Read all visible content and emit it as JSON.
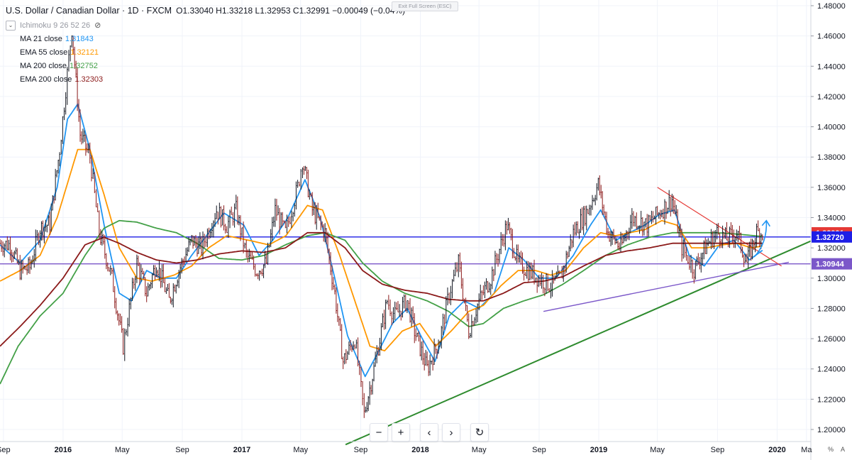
{
  "header": {
    "symbol": "U.S. Dollar / Canadian Dollar · 1D · FXCM",
    "ohlc": "O1.33040  H1.33218  L1.32953  C1.32991  −0.00049 (−0.04%)",
    "ichimoku_label": "Ichimoku 9 26 52 26",
    "exit_fullscreen": "Exit Full Screen (ESC)"
  },
  "indicators": [
    {
      "label": "MA 21 close",
      "value": "1.31843",
      "color": "#2196f3"
    },
    {
      "label": "EMA 55 close",
      "value": "1.32121",
      "color": "#ff9800"
    },
    {
      "label": "MA 200 close",
      "value": "1.32752",
      "color": "#43a047"
    },
    {
      "label": "EMA 200 close",
      "value": "1.32303",
      "color": "#8b1a1a"
    }
  ],
  "price_labels": [
    {
      "value": "1.32991",
      "bg": "#e53935"
    },
    {
      "value": "1.32720",
      "bg": "#1e1ee6"
    },
    {
      "value": "1.30944",
      "bg": "#7b57c9"
    }
  ],
  "nav": {
    "zoom_out": "−",
    "zoom_in": "+",
    "scroll_left": "‹",
    "scroll_right": "›",
    "reset": "↻"
  },
  "axis_buttons": {
    "percent": "%",
    "auto": "A"
  },
  "chart_data": {
    "type": "line",
    "title": "U.S. Dollar / Canadian Dollar · 1D · FXCM",
    "y_range": [
      1.19,
      1.485
    ],
    "y_ticks": [
      1.2,
      1.22,
      1.24,
      1.26,
      1.28,
      1.3,
      1.32,
      1.34,
      1.36,
      1.38,
      1.4,
      1.42,
      1.44,
      1.46,
      1.48
    ],
    "x_range": [
      "2015-08-25",
      "2020-03-10"
    ],
    "x_ticks": [
      {
        "label": "Sep",
        "date": "2015-09-01"
      },
      {
        "label": "2016",
        "date": "2016-01-01"
      },
      {
        "label": "May",
        "date": "2016-05-01"
      },
      {
        "label": "Sep",
        "date": "2016-09-01"
      },
      {
        "label": "2017",
        "date": "2017-01-01"
      },
      {
        "label": "May",
        "date": "2017-05-01"
      },
      {
        "label": "Sep",
        "date": "2017-09-01"
      },
      {
        "label": "2018",
        "date": "2018-01-01"
      },
      {
        "label": "May",
        "date": "2018-05-01"
      },
      {
        "label": "Sep",
        "date": "2018-09-01"
      },
      {
        "label": "2019",
        "date": "2019-01-01"
      },
      {
        "label": "May",
        "date": "2019-05-01"
      },
      {
        "label": "Sep",
        "date": "2019-09-01"
      },
      {
        "label": "2020",
        "date": "2020-01-01"
      },
      {
        "label": "Ma",
        "date": "2020-03-01"
      }
    ],
    "price_close": [
      [
        "2015-08-25",
        1.323
      ],
      [
        "2015-09-15",
        1.322
      ],
      [
        "2015-10-05",
        1.305
      ],
      [
        "2015-10-25",
        1.307
      ],
      [
        "2015-11-15",
        1.333
      ],
      [
        "2015-12-05",
        1.336
      ],
      [
        "2015-12-25",
        1.385
      ],
      [
        "2016-01-19",
        1.465
      ],
      [
        "2016-02-05",
        1.395
      ],
      [
        "2016-02-25",
        1.38
      ],
      [
        "2016-03-15",
        1.33
      ],
      [
        "2016-04-10",
        1.3
      ],
      [
        "2016-05-03",
        1.255
      ],
      [
        "2016-05-31",
        1.31
      ],
      [
        "2016-06-20",
        1.29
      ],
      [
        "2016-07-10",
        1.31
      ],
      [
        "2016-08-05",
        1.285
      ],
      [
        "2016-08-25",
        1.305
      ],
      [
        "2016-09-20",
        1.325
      ],
      [
        "2016-10-10",
        1.32
      ],
      [
        "2016-11-10",
        1.345
      ],
      [
        "2016-12-01",
        1.335
      ],
      [
        "2016-12-20",
        1.345
      ],
      [
        "2017-01-10",
        1.315
      ],
      [
        "2017-01-31",
        1.305
      ],
      [
        "2017-02-20",
        1.31
      ],
      [
        "2017-03-10",
        1.345
      ],
      [
        "2017-03-31",
        1.33
      ],
      [
        "2017-04-25",
        1.36
      ],
      [
        "2017-05-05",
        1.378
      ],
      [
        "2017-05-25",
        1.345
      ],
      [
        "2017-06-20",
        1.33
      ],
      [
        "2017-07-10",
        1.29
      ],
      [
        "2017-07-27",
        1.245
      ],
      [
        "2017-08-20",
        1.26
      ],
      [
        "2017-09-08",
        1.21
      ],
      [
        "2017-09-28",
        1.24
      ],
      [
        "2017-10-25",
        1.285
      ],
      [
        "2017-11-10",
        1.275
      ],
      [
        "2017-12-05",
        1.285
      ],
      [
        "2017-12-20",
        1.265
      ],
      [
        "2018-01-15",
        1.24
      ],
      [
        "2018-02-10",
        1.26
      ],
      [
        "2018-03-01",
        1.29
      ],
      [
        "2018-03-20",
        1.31
      ],
      [
        "2018-04-10",
        1.265
      ],
      [
        "2018-05-01",
        1.285
      ],
      [
        "2018-05-25",
        1.3
      ],
      [
        "2018-06-27",
        1.335
      ],
      [
        "2018-07-20",
        1.31
      ],
      [
        "2018-08-10",
        1.305
      ],
      [
        "2018-08-31",
        1.3
      ],
      [
        "2018-09-25",
        1.295
      ],
      [
        "2018-10-15",
        1.3
      ],
      [
        "2018-11-10",
        1.33
      ],
      [
        "2018-12-10",
        1.345
      ],
      [
        "2018-12-31",
        1.362
      ],
      [
        "2019-01-20",
        1.33
      ],
      [
        "2019-02-15",
        1.32
      ],
      [
        "2019-03-10",
        1.34
      ],
      [
        "2019-04-10",
        1.335
      ],
      [
        "2019-05-10",
        1.345
      ],
      [
        "2019-05-31",
        1.352
      ],
      [
        "2019-06-20",
        1.32
      ],
      [
        "2019-07-15",
        1.306
      ],
      [
        "2019-08-10",
        1.322
      ],
      [
        "2019-08-31",
        1.33
      ],
      [
        "2019-09-20",
        1.326
      ],
      [
        "2019-10-10",
        1.33
      ],
      [
        "2019-10-31",
        1.31
      ],
      [
        "2019-11-20",
        1.33
      ],
      [
        "2019-12-02",
        1.3299
      ]
    ],
    "overlays": [
      {
        "name": "MA 21 close",
        "color": "#2196f3",
        "points": [
          [
            "2015-08-25",
            1.322
          ],
          [
            "2015-10-05",
            1.31
          ],
          [
            "2015-11-15",
            1.325
          ],
          [
            "2015-12-20",
            1.36
          ],
          [
            "2016-01-10",
            1.405
          ],
          [
            "2016-01-31",
            1.415
          ],
          [
            "2016-02-25",
            1.385
          ],
          [
            "2016-03-25",
            1.335
          ],
          [
            "2016-04-25",
            1.29
          ],
          [
            "2016-05-20",
            1.285
          ],
          [
            "2016-06-20",
            1.305
          ],
          [
            "2016-07-20",
            1.3
          ],
          [
            "2016-08-20",
            1.3
          ],
          [
            "2016-09-20",
            1.315
          ],
          [
            "2016-10-25",
            1.33
          ],
          [
            "2016-11-25",
            1.343
          ],
          [
            "2017-01-05",
            1.335
          ],
          [
            "2017-02-05",
            1.315
          ],
          [
            "2017-03-05",
            1.325
          ],
          [
            "2017-04-05",
            1.34
          ],
          [
            "2017-05-10",
            1.365
          ],
          [
            "2017-06-10",
            1.34
          ],
          [
            "2017-07-10",
            1.3
          ],
          [
            "2017-08-05",
            1.262
          ],
          [
            "2017-09-10",
            1.235
          ],
          [
            "2017-10-05",
            1.25
          ],
          [
            "2017-11-05",
            1.27
          ],
          [
            "2017-12-05",
            1.28
          ],
          [
            "2018-01-05",
            1.26
          ],
          [
            "2018-01-31",
            1.245
          ],
          [
            "2018-03-01",
            1.275
          ],
          [
            "2018-04-01",
            1.285
          ],
          [
            "2018-05-01",
            1.28
          ],
          [
            "2018-06-01",
            1.29
          ],
          [
            "2018-07-01",
            1.32
          ],
          [
            "2018-08-01",
            1.312
          ],
          [
            "2018-09-01",
            1.3
          ],
          [
            "2018-10-05",
            1.3
          ],
          [
            "2018-11-10",
            1.315
          ],
          [
            "2018-12-15",
            1.335
          ],
          [
            "2019-01-05",
            1.345
          ],
          [
            "2019-02-05",
            1.325
          ],
          [
            "2019-03-05",
            1.33
          ],
          [
            "2019-04-05",
            1.335
          ],
          [
            "2019-05-05",
            1.342
          ],
          [
            "2019-06-05",
            1.345
          ],
          [
            "2019-07-05",
            1.315
          ],
          [
            "2019-08-05",
            1.308
          ],
          [
            "2019-09-05",
            1.322
          ],
          [
            "2019-10-05",
            1.325
          ],
          [
            "2019-11-05",
            1.312
          ],
          [
            "2019-12-02",
            1.3184
          ]
        ]
      },
      {
        "name": "EMA 55 close",
        "color": "#ff9800",
        "points": [
          [
            "2015-08-25",
            1.298
          ],
          [
            "2015-10-05",
            1.305
          ],
          [
            "2015-11-15",
            1.315
          ],
          [
            "2015-12-20",
            1.34
          ],
          [
            "2016-01-31",
            1.385
          ],
          [
            "2016-02-25",
            1.385
          ],
          [
            "2016-03-25",
            1.355
          ],
          [
            "2016-04-25",
            1.32
          ],
          [
            "2016-05-31",
            1.3
          ],
          [
            "2016-07-01",
            1.298
          ],
          [
            "2016-08-15",
            1.302
          ],
          [
            "2016-09-20",
            1.308
          ],
          [
            "2016-10-25",
            1.32
          ],
          [
            "2016-12-01",
            1.328
          ],
          [
            "2017-01-15",
            1.325
          ],
          [
            "2017-02-25",
            1.322
          ],
          [
            "2017-04-01",
            1.328
          ],
          [
            "2017-05-15",
            1.348
          ],
          [
            "2017-06-15",
            1.345
          ],
          [
            "2017-07-20",
            1.315
          ],
          [
            "2017-08-20",
            1.285
          ],
          [
            "2017-09-20",
            1.255
          ],
          [
            "2017-10-20",
            1.252
          ],
          [
            "2017-11-25",
            1.265
          ],
          [
            "2017-12-31",
            1.27
          ],
          [
            "2018-02-01",
            1.255
          ],
          [
            "2018-03-05",
            1.265
          ],
          [
            "2018-04-10",
            1.278
          ],
          [
            "2018-05-10",
            1.282
          ],
          [
            "2018-06-15",
            1.295
          ],
          [
            "2018-07-20",
            1.305
          ],
          [
            "2018-08-25",
            1.305
          ],
          [
            "2018-09-25",
            1.302
          ],
          [
            "2018-10-25",
            1.305
          ],
          [
            "2018-12-01",
            1.32
          ],
          [
            "2019-01-05",
            1.33
          ],
          [
            "2019-02-05",
            1.328
          ],
          [
            "2019-03-05",
            1.33
          ],
          [
            "2019-04-05",
            1.332
          ],
          [
            "2019-05-10",
            1.338
          ],
          [
            "2019-06-10",
            1.335
          ],
          [
            "2019-07-10",
            1.32
          ],
          [
            "2019-08-10",
            1.32
          ],
          [
            "2019-09-10",
            1.322
          ],
          [
            "2019-10-10",
            1.323
          ],
          [
            "2019-11-10",
            1.32
          ],
          [
            "2019-12-02",
            1.3212
          ]
        ]
      },
      {
        "name": "MA 200 close",
        "color": "#43a047",
        "points": [
          [
            "2015-08-25",
            1.23
          ],
          [
            "2015-10-01",
            1.255
          ],
          [
            "2015-11-15",
            1.275
          ],
          [
            "2016-01-01",
            1.29
          ],
          [
            "2016-02-15",
            1.315
          ],
          [
            "2016-03-25",
            1.333
          ],
          [
            "2016-04-25",
            1.338
          ],
          [
            "2016-05-31",
            1.337
          ],
          [
            "2016-07-10",
            1.333
          ],
          [
            "2016-08-20",
            1.33
          ],
          [
            "2016-10-01",
            1.323
          ],
          [
            "2016-11-15",
            1.313
          ],
          [
            "2017-01-01",
            1.312
          ],
          [
            "2017-02-15",
            1.315
          ],
          [
            "2017-03-31",
            1.322
          ],
          [
            "2017-05-15",
            1.328
          ],
          [
            "2017-06-20",
            1.33
          ],
          [
            "2017-07-31",
            1.325
          ],
          [
            "2017-09-05",
            1.31
          ],
          [
            "2017-10-15",
            1.298
          ],
          [
            "2017-11-30",
            1.29
          ],
          [
            "2018-01-15",
            1.285
          ],
          [
            "2018-02-28",
            1.278
          ],
          [
            "2018-04-10",
            1.268
          ],
          [
            "2018-05-10",
            1.27
          ],
          [
            "2018-06-20",
            1.28
          ],
          [
            "2018-08-01",
            1.285
          ],
          [
            "2018-09-10",
            1.289
          ],
          [
            "2018-10-20",
            1.296
          ],
          [
            "2018-12-01",
            1.305
          ],
          [
            "2019-01-15",
            1.315
          ],
          [
            "2019-03-01",
            1.322
          ],
          [
            "2019-04-15",
            1.327
          ],
          [
            "2019-06-01",
            1.33
          ],
          [
            "2019-07-15",
            1.33
          ],
          [
            "2019-09-01",
            1.33
          ],
          [
            "2019-10-15",
            1.329
          ],
          [
            "2019-12-02",
            1.3275
          ]
        ]
      },
      {
        "name": "EMA 200 close",
        "color": "#8b1a1a",
        "points": [
          [
            "2015-08-25",
            1.255
          ],
          [
            "2015-10-05",
            1.268
          ],
          [
            "2015-11-15",
            1.282
          ],
          [
            "2016-01-01",
            1.3
          ],
          [
            "2016-02-15",
            1.322
          ],
          [
            "2016-03-25",
            1.327
          ],
          [
            "2016-04-25",
            1.323
          ],
          [
            "2016-05-31",
            1.317
          ],
          [
            "2016-07-10",
            1.312
          ],
          [
            "2016-08-20",
            1.31
          ],
          [
            "2016-10-01",
            1.312
          ],
          [
            "2016-11-15",
            1.316
          ],
          [
            "2017-01-01",
            1.318
          ],
          [
            "2017-02-15",
            1.317
          ],
          [
            "2017-03-31",
            1.32
          ],
          [
            "2017-05-15",
            1.33
          ],
          [
            "2017-06-20",
            1.33
          ],
          [
            "2017-07-31",
            1.32
          ],
          [
            "2017-09-05",
            1.305
          ],
          [
            "2017-10-15",
            1.296
          ],
          [
            "2017-11-30",
            1.292
          ],
          [
            "2018-01-15",
            1.29
          ],
          [
            "2018-02-28",
            1.286
          ],
          [
            "2018-04-10",
            1.285
          ],
          [
            "2018-05-10",
            1.285
          ],
          [
            "2018-06-20",
            1.29
          ],
          [
            "2018-08-01",
            1.297
          ],
          [
            "2018-09-10",
            1.298
          ],
          [
            "2018-10-20",
            1.301
          ],
          [
            "2018-12-01",
            1.308
          ],
          [
            "2019-01-15",
            1.315
          ],
          [
            "2019-03-01",
            1.318
          ],
          [
            "2019-04-15",
            1.32
          ],
          [
            "2019-06-01",
            1.323
          ],
          [
            "2019-07-15",
            1.323
          ],
          [
            "2019-09-01",
            1.323
          ],
          [
            "2019-10-15",
            1.323
          ],
          [
            "2019-12-02",
            1.323
          ]
        ]
      }
    ],
    "hlines": [
      {
        "value": 1.3272,
        "color": "#1e1ee6"
      },
      {
        "value": 1.30944,
        "color": "#7b57c9"
      }
    ],
    "trendlines": [
      {
        "color": "#2e8b2e",
        "width": 2,
        "from": [
          "2017-08-01",
          1.19
        ],
        "to": [
          "2020-03-10",
          1.3245
        ]
      },
      {
        "color": "#7b57c9",
        "width": 1.4,
        "from": [
          "2018-09-10",
          1.278
        ],
        "to": [
          "2020-01-25",
          1.3105
        ]
      },
      {
        "color": "#e53935",
        "width": 1.2,
        "from": [
          "2019-05-01",
          1.36
        ],
        "to": [
          "2020-01-10",
          1.308
        ]
      }
    ],
    "arrows": [
      {
        "color": "#2196f3",
        "from": [
          "2019-11-15",
          1.314
        ],
        "to": [
          "2019-12-10",
          1.338
        ]
      }
    ]
  }
}
